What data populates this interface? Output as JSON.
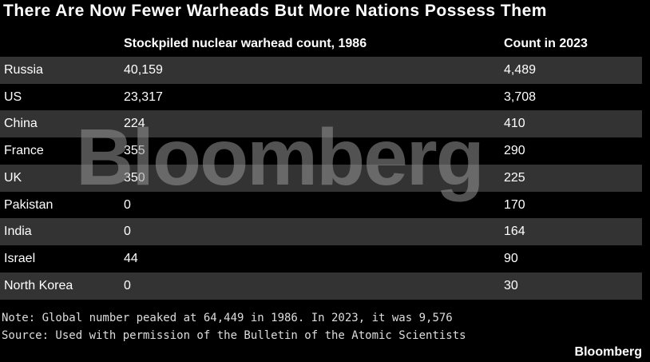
{
  "header": {
    "title": "There Are Now Fewer Warheads But More Nations Possess Them"
  },
  "table": {
    "columns": [
      "",
      "Stockpiled nuclear warhead count, 1986",
      "Count in 2023"
    ],
    "rows": [
      [
        "Russia",
        "40,159",
        "4,489"
      ],
      [
        "US",
        "23,317",
        "3,708"
      ],
      [
        "China",
        "224",
        "410"
      ],
      [
        "France",
        "355",
        "290"
      ],
      [
        "UK",
        "350",
        "225"
      ],
      [
        "Pakistan",
        "0",
        "170"
      ],
      [
        "India",
        "0",
        "164"
      ],
      [
        "Israel",
        "44",
        "90"
      ],
      [
        "North Korea",
        "0",
        "30"
      ]
    ]
  },
  "watermark": "Bloomberg",
  "footer": {
    "note": "Note: Global number peaked at 64,449 in 1986. In 2023, it was 9,576",
    "source": "Source: Used with permission of the Bulletin of the Atomic Scientists",
    "logo": "Bloomberg"
  }
}
